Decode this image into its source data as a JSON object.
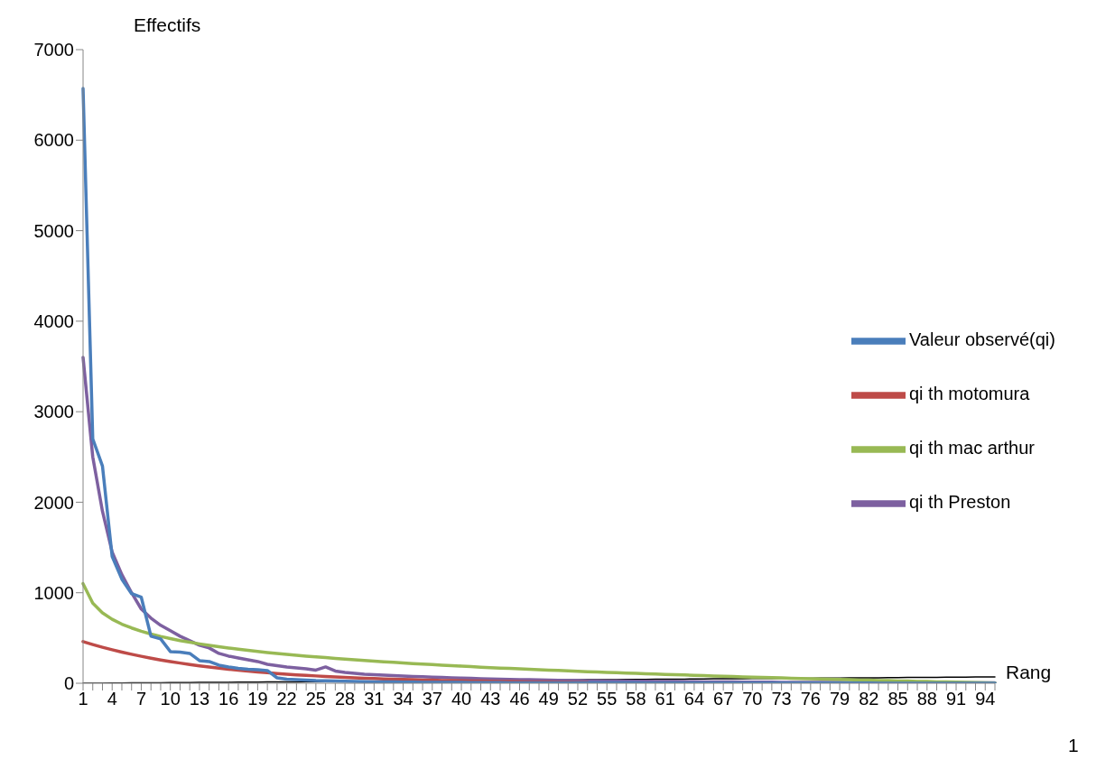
{
  "chart_data": {
    "type": "line",
    "xlabel": "Rang",
    "ylabel": "Effectifs",
    "annotations": [
      "1"
    ],
    "categories": [
      "1",
      null,
      null,
      "4",
      null,
      null,
      "7",
      null,
      null,
      "10",
      null,
      null,
      "13",
      null,
      null,
      "16",
      null,
      null,
      "19",
      null,
      null,
      "22",
      null,
      null,
      "25",
      null,
      null,
      "28",
      null,
      null,
      "31",
      null,
      null,
      "34",
      null,
      null,
      "37",
      null,
      null,
      "40",
      null,
      null,
      "43",
      null,
      null,
      "46",
      null,
      null,
      "49",
      null,
      null,
      "52",
      null,
      null,
      "55",
      null,
      null,
      "58",
      null,
      null,
      "61",
      null,
      null,
      "64",
      null,
      null,
      "67",
      null,
      null,
      "70",
      null,
      null,
      "73",
      null,
      null,
      "76",
      null,
      null,
      "79",
      null,
      null,
      "82",
      null,
      null,
      "85",
      null,
      null,
      "88",
      null,
      null,
      "91",
      null,
      null,
      "94",
      null
    ],
    "ylim": [
      0,
      7000
    ],
    "yticks": [
      0,
      1000,
      2000,
      3000,
      4000,
      5000,
      6000,
      7000
    ],
    "grid": false,
    "legend": "right",
    "marker": "none",
    "line_style": "solid",
    "series": [
      {
        "name": "Valeur observé(qi)",
        "color": "#4a7ebb",
        "values": [
          6570,
          2700,
          2400,
          1400,
          1150,
          990,
          950,
          520,
          490,
          350,
          345,
          330,
          250,
          240,
          200,
          180,
          165,
          155,
          150,
          140,
          60,
          45,
          40,
          35,
          30,
          28,
          25,
          22,
          20,
          18,
          16,
          15,
          14,
          13,
          12,
          11,
          10,
          10,
          9,
          9,
          8,
          8,
          7,
          7,
          6,
          6,
          6,
          5,
          5,
          5,
          5,
          5,
          4,
          4,
          4,
          4,
          4,
          4,
          3,
          3,
          3,
          3,
          3,
          3,
          3,
          3,
          3,
          3,
          2,
          2,
          2,
          2,
          2,
          2,
          2,
          2,
          2,
          2,
          2,
          2,
          2,
          2,
          1,
          1,
          1,
          1,
          1,
          1,
          1,
          1,
          1,
          1,
          1,
          1,
          1
        ]
      },
      {
        "name": "qi th motomura",
        "color": "#be4b48",
        "values": [
          460,
          428,
          398,
          370,
          344,
          320,
          298,
          277,
          257,
          239,
          223,
          207,
          193,
          179,
          167,
          155,
          144,
          134,
          125,
          116,
          108,
          100,
          93,
          87,
          81,
          75,
          70,
          65,
          60,
          56,
          52,
          48,
          45,
          42,
          39,
          36,
          34,
          31,
          29,
          27,
          25,
          24,
          22,
          20,
          19,
          18,
          16,
          15,
          14,
          13,
          12,
          11,
          11,
          null,
          null,
          null,
          null,
          null,
          null,
          null,
          null,
          null,
          null,
          null,
          null,
          null,
          null,
          null,
          null,
          null,
          null,
          null,
          null,
          null,
          null,
          null,
          null,
          null,
          null,
          null,
          null,
          null,
          null,
          null,
          null,
          null,
          null,
          null,
          null,
          null,
          null,
          null,
          null,
          null,
          null
        ]
      },
      {
        "name": "qi th mac arthur",
        "color": "#98b954",
        "values": [
          1100,
          885,
          778,
          707,
          653,
          611,
          575,
          544,
          517,
          494,
          472,
          453,
          435,
          419,
          404,
          389,
          376,
          363,
          352,
          340,
          330,
          319,
          310,
          300,
          291,
          283,
          275,
          267,
          259,
          252,
          244,
          238,
          231,
          224,
          218,
          212,
          206,
          200,
          195,
          189,
          184,
          178,
          173,
          168,
          164,
          159,
          154,
          150,
          145,
          141,
          136,
          132,
          128,
          124,
          120,
          116,
          112,
          109,
          105,
          101,
          98,
          94,
          91,
          87,
          84,
          81,
          78,
          74,
          71,
          68,
          65,
          62,
          59,
          56,
          53,
          50,
          47,
          45,
          42,
          39,
          36,
          34,
          31,
          29,
          26,
          24,
          21,
          19,
          16,
          14,
          12,
          9,
          7,
          5,
          2
        ]
      },
      {
        "name": "qi th Preston",
        "color": "#7d60a0",
        "values": [
          3600,
          2500,
          1900,
          1450,
          1200,
          1000,
          820,
          720,
          640,
          580,
          520,
          470,
          420,
          390,
          330,
          300,
          280,
          260,
          240,
          210,
          195,
          180,
          170,
          160,
          145,
          180,
          135,
          120,
          110,
          100,
          95,
          90,
          85,
          80,
          76,
          72,
          68,
          64,
          60,
          57,
          54,
          51,
          48,
          45,
          43,
          41,
          39,
          37,
          35,
          33,
          31,
          30,
          28,
          27,
          26,
          25,
          24,
          23,
          22,
          21,
          20,
          19,
          18,
          17,
          16,
          15,
          15,
          14,
          13,
          13,
          12,
          12,
          11,
          11,
          10,
          10,
          9,
          9,
          9,
          8,
          8,
          8,
          7,
          7,
          7,
          6,
          6,
          6,
          6,
          5,
          5,
          5,
          5,
          5,
          5
        ]
      },
      {
        "color": "#000000",
        "values": [
          0,
          1,
          1,
          2,
          3,
          4,
          4,
          5,
          6,
          7,
          7,
          8,
          9,
          10,
          10,
          11,
          12,
          13,
          13,
          14,
          15,
          16,
          16,
          17,
          18,
          19,
          19,
          20,
          21,
          22,
          22,
          23,
          24,
          25,
          25,
          26,
          27,
          28,
          28,
          29,
          30,
          31,
          31,
          32,
          33,
          34,
          34,
          35,
          36,
          37,
          37,
          38,
          39,
          40,
          40,
          41,
          42,
          43,
          43,
          44,
          45,
          46,
          46,
          47,
          48,
          49,
          49,
          50,
          51,
          52,
          52,
          53,
          54,
          55,
          55,
          56,
          57,
          58,
          58,
          59,
          60,
          61,
          61,
          62,
          63,
          64,
          64,
          65,
          66,
          67,
          67,
          68,
          69,
          70,
          70
        ]
      }
    ]
  }
}
